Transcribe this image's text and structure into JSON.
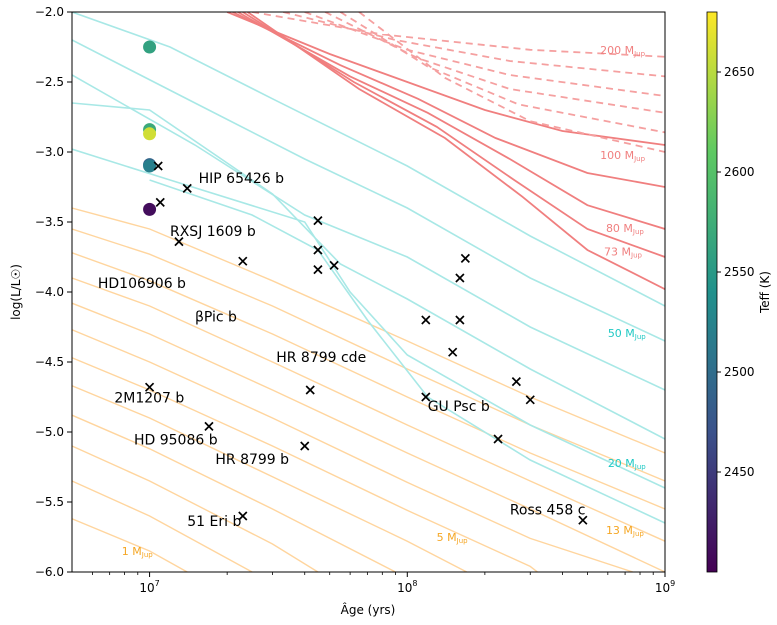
{
  "chart_data": {
    "type": "scatter",
    "xlabel": "Âge (yrs)",
    "ylabel": "log(L/L☉)",
    "colorbar_label": "Teff (K)",
    "xscale": "log",
    "xlim": [
      5000000,
      1000000000
    ],
    "ylim": [
      -6.0,
      -2.0
    ],
    "x_ticks": [
      {
        "value": 10000000,
        "base": "10",
        "exp": "7"
      },
      {
        "value": 100000000,
        "base": "10",
        "exp": "8"
      },
      {
        "value": 1000000000,
        "base": "10",
        "exp": "9"
      }
    ],
    "y_ticks": [
      {
        "value": -2.0,
        "label": "−2.0"
      },
      {
        "value": -2.5,
        "label": "−2.5"
      },
      {
        "value": -3.0,
        "label": "−3.0"
      },
      {
        "value": -3.5,
        "label": "−3.5"
      },
      {
        "value": -4.0,
        "label": "−4.0"
      },
      {
        "value": -4.5,
        "label": "−4.5"
      },
      {
        "value": -5.0,
        "label": "−5.0"
      },
      {
        "value": -5.5,
        "label": "−5.5"
      },
      {
        "value": -6.0,
        "label": "−6.0"
      }
    ],
    "colorbar": {
      "range": [
        2400,
        2680
      ],
      "ticks": [
        2450,
        2500,
        2550,
        2600,
        2650
      ],
      "stops": [
        "#440154",
        "#3b528b",
        "#21918c",
        "#5ec962",
        "#fde725"
      ]
    },
    "colored_points": [
      {
        "x": 10000000,
        "y": -2.25,
        "teff": 2560
      },
      {
        "x": 10000000,
        "y": -2.84,
        "teff": 2570
      },
      {
        "x": 10000000,
        "y": -2.87,
        "teff": 2660
      },
      {
        "x": 10000000,
        "y": -3.09,
        "teff": 2490
      },
      {
        "x": 10000000,
        "y": -3.1,
        "teff": 2520
      },
      {
        "x": 10000000,
        "y": -3.41,
        "teff": 2410
      }
    ],
    "objects": [
      {
        "x": 10800000,
        "y": -3.1
      },
      {
        "x": 14000000,
        "y": -3.26
      },
      {
        "x": 11000000,
        "y": -3.36
      },
      {
        "x": 13000000,
        "y": -3.64
      },
      {
        "x": 23000000,
        "y": -3.78
      },
      {
        "x": 45000000,
        "y": -3.49
      },
      {
        "x": 45000000,
        "y": -3.7
      },
      {
        "x": 45000000,
        "y": -3.84
      },
      {
        "x": 52000000,
        "y": -3.81
      },
      {
        "x": 10000000,
        "y": -4.68
      },
      {
        "x": 42000000,
        "y": -4.7
      },
      {
        "x": 17000000,
        "y": -4.96
      },
      {
        "x": 40000000,
        "y": -5.1
      },
      {
        "x": 23000000,
        "y": -5.6
      },
      {
        "x": 118000000,
        "y": -4.2
      },
      {
        "x": 160000000,
        "y": -4.2
      },
      {
        "x": 168000000,
        "y": -3.76
      },
      {
        "x": 160000000,
        "y": -3.9
      },
      {
        "x": 150000000,
        "y": -4.43
      },
      {
        "x": 118000000,
        "y": -4.75
      },
      {
        "x": 265000000,
        "y": -4.64
      },
      {
        "x": 300000000,
        "y": -4.77
      },
      {
        "x": 225000000,
        "y": -5.05
      },
      {
        "x": 480000000,
        "y": -5.63
      }
    ],
    "object_labels": [
      {
        "text": "HIP 65426 b",
        "x": 15500000,
        "y": -3.22
      },
      {
        "text": "RXSJ 1609 b",
        "x": 12000000,
        "y": -3.6
      },
      {
        "text": "HD106906 b",
        "x": 6300000,
        "y": -3.97
      },
      {
        "text": "βPic b",
        "x": 15000000,
        "y": -4.21
      },
      {
        "text": "HR 8799 cde",
        "x": 31000000,
        "y": -4.5
      },
      {
        "text": "2M1207 b",
        "x": 7300000,
        "y": -4.79
      },
      {
        "text": "HD 95086 b",
        "x": 8700000,
        "y": -5.09
      },
      {
        "text": "HR 8799 b",
        "x": 18000000,
        "y": -5.23
      },
      {
        "text": "GU Psc b",
        "x": 120000000,
        "y": -4.85
      },
      {
        "text": "51 Eri b",
        "x": 14000000,
        "y": -5.67
      },
      {
        "text": "Ross 458 c",
        "x": 250000000,
        "y": -5.59
      }
    ],
    "track_labels": [
      {
        "text": "200 M",
        "sub": "Jup",
        "x": 560000000,
        "y": -2.3,
        "color": "#f08080"
      },
      {
        "text": "100 M",
        "sub": "Jup",
        "x": 560000000,
        "y": -3.05,
        "color": "#f08080"
      },
      {
        "text": "80 M",
        "sub": "Jup",
        "x": 590000000,
        "y": -3.57,
        "color": "#f08080"
      },
      {
        "text": "73 M",
        "sub": "Jup",
        "x": 580000000,
        "y": -3.74,
        "color": "#f08080"
      },
      {
        "text": "50 M",
        "sub": "Jup",
        "x": 600000000,
        "y": -4.32,
        "color": "#20c9c4"
      },
      {
        "text": "20 M",
        "sub": "Jup",
        "x": 600000000,
        "y": -5.25,
        "color": "#20c9c4"
      },
      {
        "text": "13 M",
        "sub": "Jup",
        "x": 590000000,
        "y": -5.73,
        "color": "#f5a623"
      },
      {
        "text": "5 M",
        "sub": "Jup",
        "x": 130000000,
        "y": -5.78,
        "color": "#f5a623"
      },
      {
        "text": "1 M",
        "sub": "Jup",
        "x": 7800000,
        "y": -5.88,
        "color": "#f5a623"
      }
    ],
    "tracks": {
      "red_dashed": [
        [
          [
            25000000,
            -2.0
          ],
          [
            80000000,
            -2.16
          ],
          [
            300000000,
            -2.27
          ],
          [
            1000000000,
            -2.32
          ]
        ],
        [
          [
            33000000,
            -2.0
          ],
          [
            90000000,
            -2.2
          ],
          [
            250000000,
            -2.35
          ],
          [
            1000000000,
            -2.46
          ]
        ],
        [
          [
            40000000,
            -2.0
          ],
          [
            100000000,
            -2.27
          ],
          [
            250000000,
            -2.45
          ],
          [
            1000000000,
            -2.6
          ]
        ],
        [
          [
            48000000,
            -2.0
          ],
          [
            110000000,
            -2.33
          ],
          [
            250000000,
            -2.55
          ],
          [
            1000000000,
            -2.72
          ]
        ],
        [
          [
            55000000,
            -2.0
          ],
          [
            120000000,
            -2.39
          ],
          [
            270000000,
            -2.66
          ],
          [
            1000000000,
            -2.86
          ]
        ],
        [
          [
            65000000,
            -2.0
          ],
          [
            140000000,
            -2.47
          ],
          [
            300000000,
            -2.78
          ],
          [
            1000000000,
            -3.0
          ]
        ]
      ],
      "red_solid": [
        [
          [
            20000000,
            -2.0
          ],
          [
            50000000,
            -2.3
          ],
          [
            100000000,
            -2.5
          ],
          [
            200000000,
            -2.7
          ],
          [
            400000000,
            -2.85
          ],
          [
            1000000000,
            -2.95
          ]
        ],
        [
          [
            21000000,
            -2.0
          ],
          [
            55000000,
            -2.38
          ],
          [
            110000000,
            -2.62
          ],
          [
            220000000,
            -2.9
          ],
          [
            500000000,
            -3.15
          ],
          [
            1000000000,
            -3.25
          ]
        ],
        [
          [
            22000000,
            -2.0
          ],
          [
            60000000,
            -2.46
          ],
          [
            120000000,
            -2.72
          ],
          [
            250000000,
            -3.05
          ],
          [
            500000000,
            -3.38
          ],
          [
            1000000000,
            -3.55
          ]
        ],
        [
          [
            23000000,
            -2.0
          ],
          [
            62000000,
            -2.5
          ],
          [
            130000000,
            -2.82
          ],
          [
            260000000,
            -3.2
          ],
          [
            500000000,
            -3.55
          ],
          [
            1000000000,
            -3.75
          ]
        ],
        [
          [
            24000000,
            -2.0
          ],
          [
            65000000,
            -2.55
          ],
          [
            140000000,
            -2.9
          ],
          [
            280000000,
            -3.32
          ],
          [
            500000000,
            -3.7
          ],
          [
            1000000000,
            -3.98
          ]
        ]
      ],
      "cyan": [
        [
          [
            5000000,
            -2.0
          ],
          [
            12000000,
            -2.25
          ],
          [
            30000000,
            -2.62
          ],
          [
            100000000,
            -3.1
          ],
          [
            300000000,
            -3.6
          ],
          [
            1000000000,
            -4.1
          ]
        ],
        [
          [
            5000000,
            -2.2
          ],
          [
            15000000,
            -2.65
          ],
          [
            40000000,
            -3.05
          ],
          [
            100000000,
            -3.4
          ],
          [
            300000000,
            -3.9
          ],
          [
            1000000000,
            -4.35
          ]
        ],
        [
          [
            5000000,
            -2.45
          ],
          [
            15000000,
            -2.95
          ],
          [
            40000000,
            -3.45
          ],
          [
            100000000,
            -3.75
          ],
          [
            300000000,
            -4.25
          ],
          [
            1000000000,
            -4.7
          ]
        ],
        [
          [
            5000000,
            -2.65
          ],
          [
            10000000,
            -2.7
          ],
          [
            30000000,
            -3.3
          ],
          [
            55000000,
            -3.8
          ],
          [
            100000000,
            -4.05
          ],
          [
            300000000,
            -4.55
          ],
          [
            1000000000,
            -5.05
          ]
        ],
        [
          [
            5000000,
            -2.98
          ],
          [
            12000000,
            -3.2
          ],
          [
            40000000,
            -3.5
          ],
          [
            60000000,
            -4.0
          ],
          [
            100000000,
            -4.45
          ],
          [
            300000000,
            -4.95
          ],
          [
            1000000000,
            -5.4
          ]
        ],
        [
          [
            10000000,
            -3.2
          ],
          [
            25000000,
            -3.45
          ],
          [
            45000000,
            -3.7
          ],
          [
            70000000,
            -4.2
          ],
          [
            120000000,
            -4.75
          ],
          [
            300000000,
            -5.2
          ],
          [
            1000000000,
            -5.65
          ]
        ]
      ],
      "orange": [
        [
          [
            5000000,
            -3.4
          ],
          [
            10000000,
            -3.55
          ],
          [
            30000000,
            -3.92
          ],
          [
            100000000,
            -4.35
          ],
          [
            300000000,
            -4.75
          ],
          [
            1000000000,
            -5.15
          ]
        ],
        [
          [
            5000000,
            -3.55
          ],
          [
            10000000,
            -3.73
          ],
          [
            30000000,
            -4.1
          ],
          [
            100000000,
            -4.55
          ],
          [
            300000000,
            -4.95
          ],
          [
            1000000000,
            -5.35
          ]
        ],
        [
          [
            5000000,
            -3.72
          ],
          [
            10000000,
            -3.92
          ],
          [
            30000000,
            -4.3
          ],
          [
            100000000,
            -4.75
          ],
          [
            300000000,
            -5.15
          ],
          [
            1000000000,
            -5.55
          ]
        ],
        [
          [
            5000000,
            -3.9
          ],
          [
            10000000,
            -4.1
          ],
          [
            30000000,
            -4.5
          ],
          [
            100000000,
            -4.95
          ],
          [
            300000000,
            -5.35
          ],
          [
            1000000000,
            -5.78
          ]
        ],
        [
          [
            5000000,
            -4.08
          ],
          [
            10000000,
            -4.3
          ],
          [
            30000000,
            -4.7
          ],
          [
            100000000,
            -5.15
          ],
          [
            300000000,
            -5.55
          ],
          [
            1000000000,
            -6.0
          ]
        ],
        [
          [
            5000000,
            -4.27
          ],
          [
            10000000,
            -4.5
          ],
          [
            30000000,
            -4.9
          ],
          [
            100000000,
            -5.36
          ],
          [
            300000000,
            -5.76
          ],
          [
            750000000,
            -6.0
          ]
        ],
        [
          [
            5000000,
            -4.47
          ],
          [
            10000000,
            -4.7
          ],
          [
            30000000,
            -5.1
          ],
          [
            100000000,
            -5.56
          ],
          [
            300000000,
            -5.96
          ],
          [
            320000000,
            -6.0
          ]
        ],
        [
          [
            5000000,
            -4.67
          ],
          [
            10000000,
            -4.9
          ],
          [
            30000000,
            -5.32
          ],
          [
            100000000,
            -5.78
          ],
          [
            170000000,
            -6.0
          ]
        ],
        [
          [
            5000000,
            -4.88
          ],
          [
            10000000,
            -5.12
          ],
          [
            30000000,
            -5.55
          ],
          [
            90000000,
            -6.0
          ]
        ],
        [
          [
            5000000,
            -5.1
          ],
          [
            10000000,
            -5.35
          ],
          [
            30000000,
            -5.8
          ],
          [
            45000000,
            -6.0
          ]
        ],
        [
          [
            5000000,
            -5.35
          ],
          [
            10000000,
            -5.6
          ],
          [
            25000000,
            -6.0
          ]
        ],
        [
          [
            5000000,
            -5.62
          ],
          [
            10000000,
            -5.85
          ],
          [
            14000000,
            -6.0
          ]
        ]
      ]
    }
  }
}
